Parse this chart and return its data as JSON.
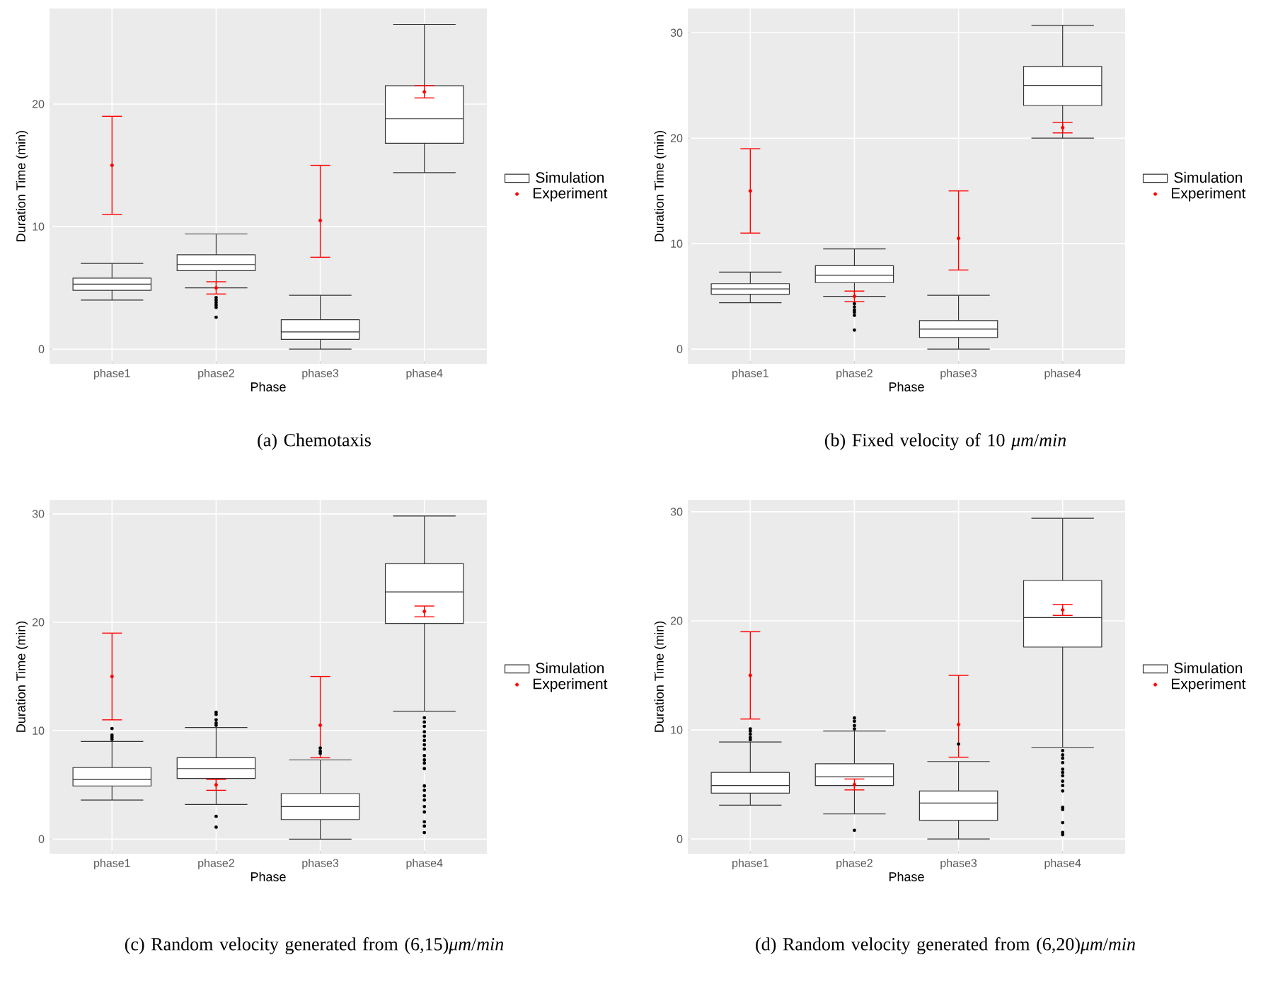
{
  "chart_data": [
    {
      "type": "box",
      "title": "(a)  Chemotaxis",
      "xlabel": "Phase",
      "ylabel": "Duration Time (min)",
      "categories": [
        "phase1",
        "phase2",
        "phase3",
        "phase4"
      ],
      "ylim": [
        -1.2,
        27.8
      ],
      "yticks": [
        0,
        10,
        20
      ],
      "grid": true,
      "legend": "right",
      "series": [
        {
          "name": "Simulation",
          "type": "box",
          "color": "#333333",
          "boxes": [
            {
              "low": 4.0,
              "q1": 4.8,
              "median": 5.3,
              "q3": 5.8,
              "high": 7.0
            },
            {
              "low": 5.0,
              "q1": 6.4,
              "median": 6.9,
              "q3": 7.7,
              "high": 9.4,
              "outliers": [
                4.2,
                4.0,
                3.8,
                3.6,
                3.4,
                2.6
              ]
            },
            {
              "low": 0.0,
              "q1": 0.8,
              "median": 1.4,
              "q3": 2.4,
              "high": 4.4
            },
            {
              "low": 14.4,
              "q1": 16.8,
              "median": 18.8,
              "q3": 21.5,
              "high": 26.5
            }
          ]
        },
        {
          "name": "Experiment",
          "type": "scatter",
          "color": "#ff0000",
          "x": [
            "phase1",
            "phase2",
            "phase3",
            "phase4"
          ],
          "values": [
            15,
            5,
            10.5,
            21
          ],
          "errors": [
            [
              11,
              19
            ],
            [
              4.5,
              5.5
            ],
            [
              7.5,
              15
            ],
            [
              20.5,
              21.5
            ]
          ]
        }
      ]
    },
    {
      "type": "box",
      "title": "(b)  Fixed velocity of 10 *μm*/*min*",
      "xlabel": "Phase",
      "ylabel": "Duration Time (min)",
      "categories": [
        "phase1",
        "phase2",
        "phase3",
        "phase4"
      ],
      "ylim": [
        -1.4,
        32.3
      ],
      "yticks": [
        0,
        10,
        20,
        30
      ],
      "grid": true,
      "legend": "right",
      "series": [
        {
          "name": "Simulation",
          "type": "box",
          "color": "#333333",
          "boxes": [
            {
              "low": 4.4,
              "q1": 5.2,
              "median": 5.7,
              "q3": 6.2,
              "high": 7.3
            },
            {
              "low": 5.0,
              "q1": 6.3,
              "median": 7.0,
              "q3": 7.9,
              "high": 9.5,
              "outliers": [
                4.3,
                4.0,
                3.7,
                3.5,
                3.2,
                1.8
              ]
            },
            {
              "low": 0.0,
              "q1": 1.1,
              "median": 1.9,
              "q3": 2.7,
              "high": 5.1
            },
            {
              "low": 20.0,
              "q1": 23.1,
              "median": 25.0,
              "q3": 26.8,
              "high": 30.7
            }
          ]
        },
        {
          "name": "Experiment",
          "type": "scatter",
          "color": "#ff0000",
          "x": [
            "phase1",
            "phase2",
            "phase3",
            "phase4"
          ],
          "values": [
            15,
            5,
            10.5,
            21
          ],
          "errors": [
            [
              11,
              19
            ],
            [
              4.5,
              5.5
            ],
            [
              7.5,
              15
            ],
            [
              20.5,
              21.5
            ]
          ]
        }
      ]
    },
    {
      "type": "box",
      "title": "(c)  Random velocity generated from (6,15)*μm*/*min*",
      "xlabel": "Phase",
      "ylabel": "Duration Time (min)",
      "categories": [
        "phase1",
        "phase2",
        "phase3",
        "phase4"
      ],
      "ylim": [
        -1.35,
        31.3
      ],
      "yticks": [
        0,
        10,
        20,
        30
      ],
      "grid": true,
      "legend": "right",
      "series": [
        {
          "name": "Simulation",
          "type": "box",
          "color": "#333333",
          "boxes": [
            {
              "low": 3.6,
              "q1": 4.9,
              "median": 5.5,
              "q3": 6.6,
              "high": 9.0,
              "outliers": [
                9.2,
                9.4,
                9.6,
                10.2
              ]
            },
            {
              "low": 3.2,
              "q1": 5.6,
              "median": 6.5,
              "q3": 7.5,
              "high": 10.3,
              "outliers": [
                10.5,
                10.7,
                11.0,
                11.5,
                11.7,
                2.1,
                1.1
              ]
            },
            {
              "low": 0.0,
              "q1": 1.8,
              "median": 3.0,
              "q3": 4.2,
              "high": 7.3,
              "outliers": [
                7.9,
                8.1,
                8.4
              ]
            },
            {
              "low": 11.8,
              "q1": 19.9,
              "median": 22.8,
              "q3": 25.4,
              "high": 29.8,
              "outliers": [
                11.2,
                10.8,
                10.4,
                9.9,
                9.5,
                9.1,
                8.7,
                8.3,
                7.7,
                7.3,
                7.0,
                6.5,
                4.9,
                4.5,
                4.0,
                3.6,
                3.0,
                2.5,
                1.6,
                1.2,
                0.6
              ]
            }
          ]
        },
        {
          "name": "Experiment",
          "type": "scatter",
          "color": "#ff0000",
          "x": [
            "phase1",
            "phase2",
            "phase3",
            "phase4"
          ],
          "values": [
            15,
            5,
            10.5,
            21
          ],
          "errors": [
            [
              11,
              19
            ],
            [
              4.5,
              5.5
            ],
            [
              7.5,
              15
            ],
            [
              20.5,
              21.5
            ]
          ]
        }
      ]
    },
    {
      "type": "box",
      "title": "(d)  Random velocity generated from (6,20)*μm*/*min*",
      "xlabel": "Phase",
      "ylabel": "Duration Time (min)",
      "categories": [
        "phase1",
        "phase2",
        "phase3",
        "phase4"
      ],
      "ylim": [
        -1.35,
        31.1
      ],
      "yticks": [
        0,
        10,
        20,
        30
      ],
      "grid": true,
      "legend": "right",
      "series": [
        {
          "name": "Simulation",
          "type": "box",
          "color": "#333333",
          "boxes": [
            {
              "low": 3.1,
              "q1": 4.2,
              "median": 4.9,
              "q3": 6.1,
              "high": 8.9,
              "outliers": [
                9.1,
                9.3,
                9.6,
                9.9,
                10.1
              ]
            },
            {
              "low": 2.3,
              "q1": 4.9,
              "median": 5.7,
              "q3": 6.9,
              "high": 9.9,
              "outliers": [
                10.1,
                10.4,
                10.8,
                11.1,
                0.8
              ]
            },
            {
              "low": 0.0,
              "q1": 1.7,
              "median": 3.3,
              "q3": 4.4,
              "high": 7.1,
              "outliers": [
                8.7
              ]
            },
            {
              "low": 8.4,
              "q1": 17.6,
              "median": 20.3,
              "q3": 23.7,
              "high": 29.4,
              "outliers": [
                8.1,
                7.7,
                7.4,
                7.0,
                6.4,
                6.1,
                5.8,
                5.3,
                4.9,
                4.4,
                2.9,
                2.7,
                1.5,
                0.6,
                0.4
              ]
            }
          ]
        },
        {
          "name": "Experiment",
          "type": "scatter",
          "color": "#ff0000",
          "x": [
            "phase1",
            "phase2",
            "phase3",
            "phase4"
          ],
          "values": [
            15,
            5,
            10.5,
            21
          ],
          "errors": [
            [
              11,
              19
            ],
            [
              4.5,
              5.5
            ],
            [
              7.5,
              15
            ],
            [
              20.5,
              21.5
            ]
          ]
        }
      ]
    }
  ]
}
